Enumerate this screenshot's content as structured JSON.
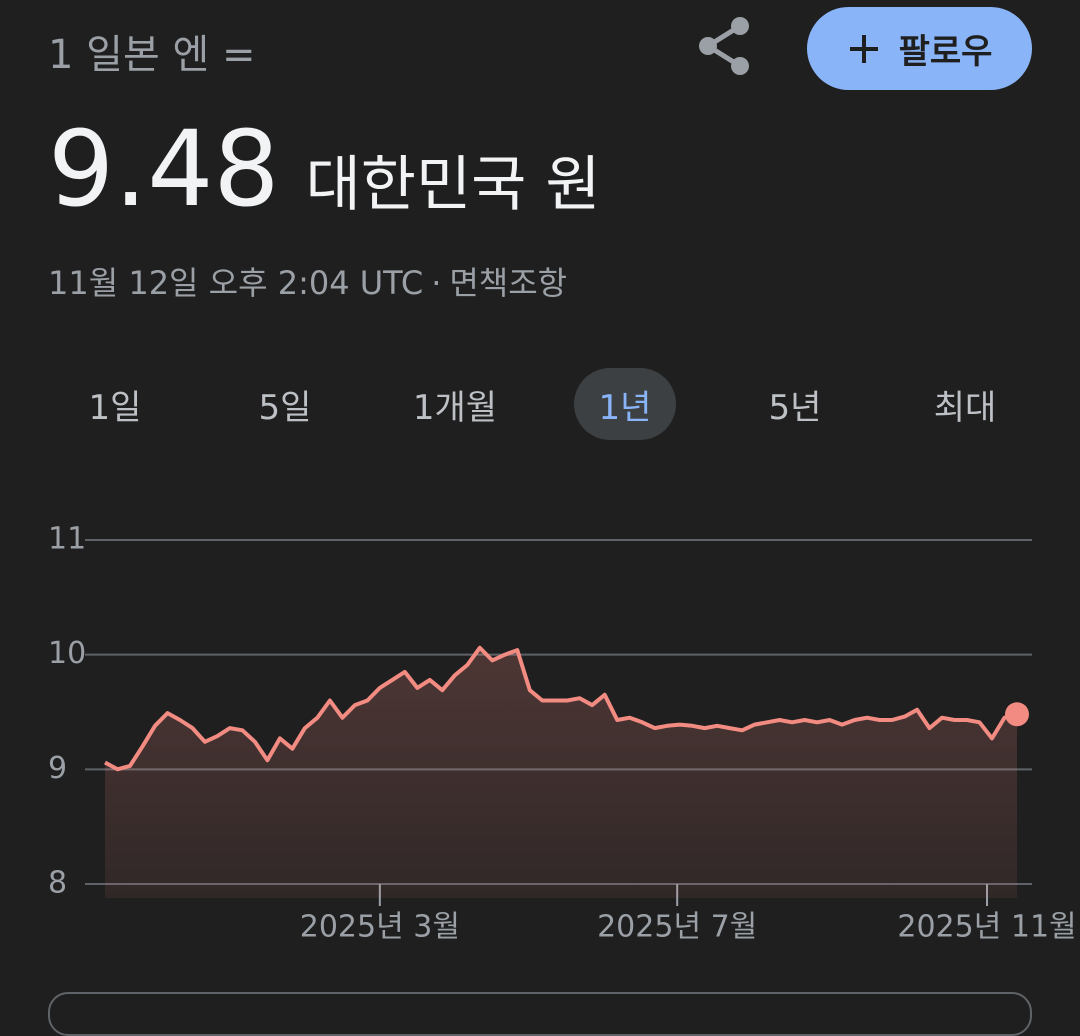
{
  "header": {
    "pre": "1 일본 엔 =",
    "value": "9.48",
    "currency": "대한민국 원",
    "timestamp": "11월 12일 오후 2:04 UTC",
    "separator": "·",
    "disclaimer": "면책조항",
    "follow": "팔로우"
  },
  "tabs": {
    "items": [
      "1일",
      "5일",
      "1개월",
      "1년",
      "5년",
      "최대"
    ],
    "selected": 3
  },
  "chart_data": {
    "type": "line",
    "color": "#f28b82",
    "grid": true,
    "values": [
      9.06,
      9.0,
      9.03,
      9.2,
      9.38,
      9.49,
      9.43,
      9.36,
      9.24,
      9.29,
      9.36,
      9.34,
      9.24,
      9.08,
      9.27,
      9.18,
      9.36,
      9.45,
      9.6,
      9.45,
      9.56,
      9.6,
      9.71,
      9.78,
      9.85,
      9.71,
      9.78,
      9.69,
      9.82,
      9.91,
      10.06,
      9.95,
      10.0,
      10.04,
      9.69,
      9.6,
      9.6,
      9.6,
      9.62,
      9.56,
      9.65,
      9.43,
      9.45,
      9.41,
      9.36,
      9.38,
      9.39,
      9.38,
      9.36,
      9.38,
      9.36,
      9.34,
      9.39,
      9.41,
      9.43,
      9.41,
      9.43,
      9.41,
      9.43,
      9.39,
      9.43,
      9.45,
      9.43,
      9.43,
      9.46,
      9.52,
      9.36,
      9.45,
      9.43,
      9.43,
      9.41,
      9.27,
      9.45,
      9.48
    ],
    "xlim": [
      0,
      73
    ],
    "xticks": [
      {
        "value": 22,
        "label": "2025년 3월"
      },
      {
        "value": 45.8,
        "label": "2025년 7월"
      },
      {
        "value": 70.6,
        "label": "2025년 11월"
      }
    ],
    "ylim": [
      8,
      11
    ],
    "yticks": [
      8,
      9,
      10,
      11
    ]
  }
}
